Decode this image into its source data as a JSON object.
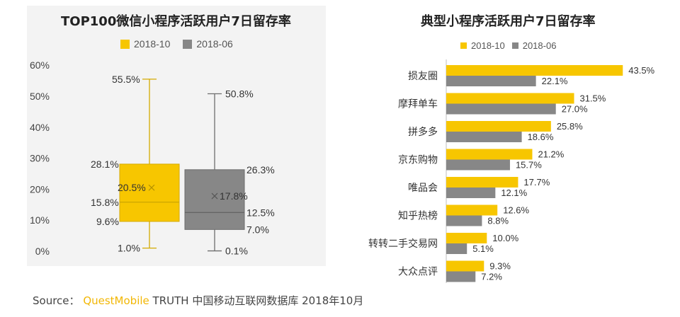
{
  "colors": {
    "y2018_10": "#f7c600",
    "y2018_06": "#878787",
    "whisker_10": "#d4aa00",
    "whisker_06": "#6e6e6e"
  },
  "chart_data": [
    {
      "type": "boxplot",
      "title": "TOP100微信小程序活跃用户7日留存率",
      "legend": [
        "2018-10",
        "2018-06"
      ],
      "y_ticks": [
        "60%",
        "50%",
        "40%",
        "30%",
        "20%",
        "10%",
        "0%"
      ],
      "ylim": [
        0,
        60
      ],
      "series": [
        {
          "name": "2018-10",
          "max": 55.5,
          "q3": 28.1,
          "median": 15.8,
          "mean": 20.5,
          "q1": 9.6,
          "min": 1.0,
          "labels": {
            "max": "55.5%",
            "q3": "28.1%",
            "median": "15.8%",
            "mean": "20.5%",
            "q1": "9.6%",
            "min": "1.0%"
          }
        },
        {
          "name": "2018-06",
          "max": 50.8,
          "q3": 26.3,
          "median": 12.5,
          "mean": 17.8,
          "q1": 7.0,
          "min": 0.1,
          "labels": {
            "max": "50.8%",
            "q3": "26.3%",
            "median": "12.5%",
            "mean": "17.8%",
            "q1": "7.0%",
            "min": "0.1%"
          }
        }
      ]
    },
    {
      "type": "bar",
      "orientation": "horizontal",
      "title": "典型小程序活跃用户7日留存率",
      "legend": [
        "2018-10",
        "2018-06"
      ],
      "categories": [
        "损友圈",
        "摩拜单车",
        "拼多多",
        "京东购物",
        "唯品会",
        "知乎热榜",
        "转转二手交易网",
        "大众点评"
      ],
      "series": [
        {
          "name": "2018-10",
          "values": [
            43.5,
            31.5,
            25.8,
            21.2,
            17.7,
            12.6,
            10.0,
            9.3
          ],
          "labels": [
            "43.5%",
            "31.5%",
            "25.8%",
            "21.2%",
            "17.7%",
            "12.6%",
            "10.0%",
            "9.3%"
          ]
        },
        {
          "name": "2018-06",
          "values": [
            22.1,
            27.0,
            18.6,
            15.7,
            12.1,
            8.8,
            5.1,
            7.2
          ],
          "labels": [
            "22.1%",
            "27.0%",
            "18.6%",
            "15.7%",
            "12.1%",
            "8.8%",
            "5.1%",
            "7.2%"
          ]
        }
      ]
    }
  ],
  "source": {
    "prefix": "Source：",
    "brand": "QuestMobile",
    "suffix": "TRUTH 中国移动互联网数据库 2018年10月"
  }
}
